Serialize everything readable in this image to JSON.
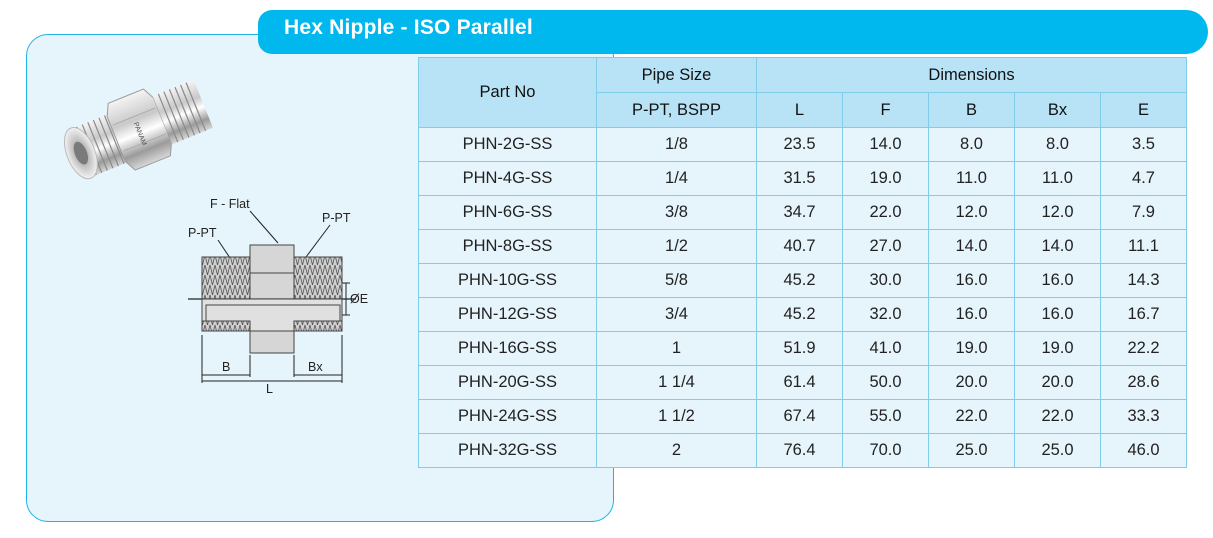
{
  "title": "Hex Nipple - ISO Parallel",
  "diagram": {
    "labels": {
      "f_flat": "F - Flat",
      "p_pt_left": "P-PT",
      "p_pt_right": "P-PT",
      "oe": "ØE",
      "b": "B",
      "bx": "Bx",
      "l": "L"
    }
  },
  "product_image": {
    "icon": "hex-nipple-photo",
    "logo_text": "PANAM"
  },
  "table": {
    "headers": {
      "part_no": "Part No",
      "pipe_size": "Pipe Size",
      "pipe_size_sub": "P-PT, BSPP",
      "dimensions": "Dimensions",
      "dims": [
        "L",
        "F",
        "B",
        "Bx",
        "E"
      ]
    },
    "rows": [
      {
        "part_no": "PHN-2G-SS",
        "pipe": "1/8",
        "L": "23.5",
        "F": "14.0",
        "B": "8.0",
        "Bx": "8.0",
        "E": "3.5"
      },
      {
        "part_no": "PHN-4G-SS",
        "pipe": "1/4",
        "L": "31.5",
        "F": "19.0",
        "B": "11.0",
        "Bx": "11.0",
        "E": "4.7"
      },
      {
        "part_no": "PHN-6G-SS",
        "pipe": "3/8",
        "L": "34.7",
        "F": "22.0",
        "B": "12.0",
        "Bx": "12.0",
        "E": "7.9"
      },
      {
        "part_no": "PHN-8G-SS",
        "pipe": "1/2",
        "L": "40.7",
        "F": "27.0",
        "B": "14.0",
        "Bx": "14.0",
        "E": "11.1"
      },
      {
        "part_no": "PHN-10G-SS",
        "pipe": "5/8",
        "L": "45.2",
        "F": "30.0",
        "B": "16.0",
        "Bx": "16.0",
        "E": "14.3"
      },
      {
        "part_no": "PHN-12G-SS",
        "pipe": "3/4",
        "L": "45.2",
        "F": "32.0",
        "B": "16.0",
        "Bx": "16.0",
        "E": "16.7"
      },
      {
        "part_no": "PHN-16G-SS",
        "pipe": "1",
        "L": "51.9",
        "F": "41.0",
        "B": "19.0",
        "Bx": "19.0",
        "E": "22.2"
      },
      {
        "part_no": "PHN-20G-SS",
        "pipe": "1 1/4",
        "L": "61.4",
        "F": "50.0",
        "B": "20.0",
        "Bx": "20.0",
        "E": "28.6"
      },
      {
        "part_no": "PHN-24G-SS",
        "pipe": "1 1/2",
        "L": "67.4",
        "F": "55.0",
        "B": "22.0",
        "Bx": "22.0",
        "E": "33.3"
      },
      {
        "part_no": "PHN-32G-SS",
        "pipe": "2",
        "L": "76.4",
        "F": "70.0",
        "B": "25.0",
        "Bx": "25.0",
        "E": "46.0"
      }
    ]
  },
  "colors": {
    "accent": "#00b7ee",
    "panel_bg": "#e6f4fb",
    "header_bg": "#b8e3f6",
    "border": "#7fcde9"
  }
}
